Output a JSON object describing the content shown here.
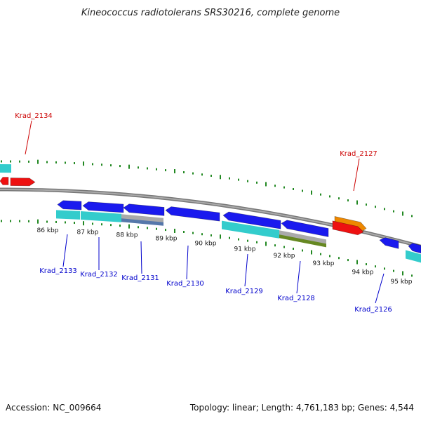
{
  "title": "Kineococcus radiotolerans SRS30216, complete genome",
  "footer": {
    "accession": "Accession: NC_009664",
    "stats": "Topology: linear; Length: 4,761,183 bp; Genes: 4,544"
  },
  "colors": {
    "forward_gene": "#1a1aee",
    "reverse_gene": "#ee1111",
    "highlight_gene": "#ee8800",
    "domain_cyan": "#33cccc",
    "domain_grey": "#aaaaaa",
    "domain_steel": "#5577aa",
    "domain_olive": "#668822",
    "tick": "#228822",
    "axis": "#888888",
    "label_forward": "#0000cc",
    "label_reverse": "#cc0000"
  },
  "scale_labels": [
    "86 kbp",
    "87 kbp",
    "88 kbp",
    "89 kbp",
    "90 kbp",
    "91 kbp",
    "92 kbp",
    "93 kbp",
    "94 kbp",
    "95 kbp"
  ],
  "gene_labels": [
    {
      "name": "Krad_2134",
      "strand": "reverse"
    },
    {
      "name": "Krad_2127",
      "strand": "reverse"
    },
    {
      "name": "Krad_2133",
      "strand": "forward"
    },
    {
      "name": "Krad_2132",
      "strand": "forward"
    },
    {
      "name": "Krad_2131",
      "strand": "forward"
    },
    {
      "name": "Krad_2130",
      "strand": "forward"
    },
    {
      "name": "Krad_2129",
      "strand": "forward"
    },
    {
      "name": "Krad_2128",
      "strand": "forward"
    },
    {
      "name": "Krad_2126",
      "strand": "forward"
    }
  ]
}
